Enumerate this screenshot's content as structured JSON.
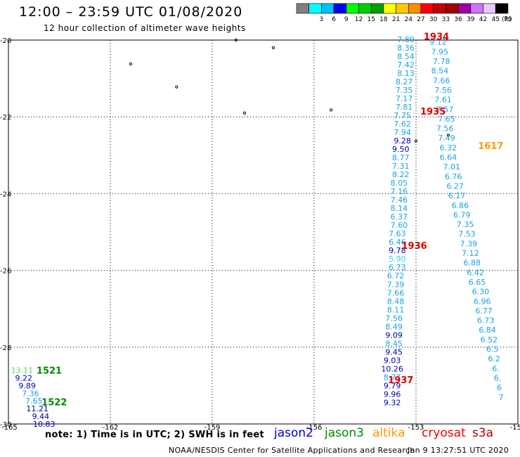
{
  "title": "12:00 – 23:59 UTC 01/08/2020",
  "subtitle": "12 hour collection of altimeter wave heights",
  "footer": {
    "note": "note: 1) Time is in UTC; 2) SWH is in feet",
    "credit": "NOAA/NESDIS Center for Satellite Applications and Research",
    "generated": "Jan  9 13:27:51 UTC 2020"
  },
  "legend": {
    "unit": "(ft)",
    "items": [
      {
        "label": "",
        "color": "#808080"
      },
      {
        "label": "3",
        "color": "#00ffff"
      },
      {
        "label": "6",
        "color": "#00bfff"
      },
      {
        "label": "9",
        "color": "#0000ff"
      },
      {
        "label": "12",
        "color": "#00ff00"
      },
      {
        "label": "15",
        "color": "#00d000"
      },
      {
        "label": "18",
        "color": "#00a000"
      },
      {
        "label": "21",
        "color": "#ffff00"
      },
      {
        "label": "24",
        "color": "#ffc800"
      },
      {
        "label": "27",
        "color": "#ff8c00"
      },
      {
        "label": "30",
        "color": "#ff0000"
      },
      {
        "label": "33",
        "color": "#c80000"
      },
      {
        "label": "36",
        "color": "#a00000"
      },
      {
        "label": "39",
        "color": "#a000a0"
      },
      {
        "label": "42",
        "color": "#d070ff"
      },
      {
        "label": "45",
        "color": "#e8c8ff"
      },
      {
        "label": "70",
        "color": "#000000"
      }
    ]
  },
  "satellites": [
    {
      "name": "jason2",
      "color": "#0000cc"
    },
    {
      "name": "jason3",
      "color": "#008800"
    },
    {
      "name": "altika",
      "color": "#ff9900"
    },
    {
      "name": "cryosat",
      "color": "#ee0000"
    },
    {
      "name": "s3a",
      "color": "#aa0000"
    }
  ],
  "chart_data": {
    "type": "scatter",
    "xlim": [
      -165,
      -150
    ],
    "ylim": [
      -30,
      -20
    ],
    "x_ticks": [
      -165,
      -162,
      -159,
      -156,
      -153,
      -150
    ],
    "x_tick_labels": [
      "-165",
      "-162",
      "-159",
      "-156",
      "-153",
      "-150"
    ],
    "y_ticks": [
      -20,
      -22,
      -24,
      -26,
      -28,
      -30
    ],
    "y_tick_labels": [
      "-20",
      "-22",
      "-24",
      "-26",
      "-28",
      "-30"
    ],
    "grid": true,
    "track_a": [
      {
        "lon": -153.3,
        "lat": -19.98,
        "value": "7.80",
        "color": "#1aa3e0"
      },
      {
        "lon": -153.3,
        "lat": -20.2,
        "value": "8.36",
        "color": "#1aa3e0"
      },
      {
        "lon": -153.3,
        "lat": -20.42,
        "value": "8.54",
        "color": "#1aa3e0"
      },
      {
        "lon": -153.3,
        "lat": -20.64,
        "value": "7.42",
        "color": "#1aa3e0"
      },
      {
        "lon": -153.3,
        "lat": -20.86,
        "value": "8.13",
        "color": "#1aa3e0"
      },
      {
        "lon": -153.35,
        "lat": -21.08,
        "value": "8.27",
        "color": "#1aa3e0"
      },
      {
        "lon": -153.35,
        "lat": -21.3,
        "value": "7.35",
        "color": "#1aa3e0"
      },
      {
        "lon": -153.35,
        "lat": -21.52,
        "value": "7.17",
        "color": "#1aa3e0"
      },
      {
        "lon": -153.35,
        "lat": -21.74,
        "value": "7.81",
        "color": "#1aa3e0"
      },
      {
        "lon": -153.4,
        "lat": -21.96,
        "value": "7.75",
        "color": "#1aa3e0"
      },
      {
        "lon": -153.4,
        "lat": -22.18,
        "value": "7.62",
        "color": "#1aa3e0"
      },
      {
        "lon": -153.4,
        "lat": -22.4,
        "value": "7.94",
        "color": "#1aa3e0"
      },
      {
        "lon": -153.4,
        "lat": -22.62,
        "value": "9.28",
        "color": "#0000aa"
      },
      {
        "lon": -153.45,
        "lat": -22.84,
        "value": "9.50",
        "color": "#0000aa"
      },
      {
        "lon": -153.45,
        "lat": -23.06,
        "value": "8.77",
        "color": "#1aa3e0"
      },
      {
        "lon": -153.45,
        "lat": -23.28,
        "value": "7.31",
        "color": "#1aa3e0"
      },
      {
        "lon": -153.45,
        "lat": -23.5,
        "value": "8.22",
        "color": "#1aa3e0"
      },
      {
        "lon": -153.5,
        "lat": -23.72,
        "value": "8.05",
        "color": "#1aa3e0"
      },
      {
        "lon": -153.5,
        "lat": -23.94,
        "value": "7.16",
        "color": "#1aa3e0"
      },
      {
        "lon": -153.5,
        "lat": -24.16,
        "value": "7.46",
        "color": "#1aa3e0"
      },
      {
        "lon": -153.5,
        "lat": -24.38,
        "value": "8.14",
        "color": "#1aa3e0"
      },
      {
        "lon": -153.5,
        "lat": -24.6,
        "value": "6.37",
        "color": "#1aa3e0"
      },
      {
        "lon": -153.5,
        "lat": -24.82,
        "value": "7.60",
        "color": "#1aa3e0"
      },
      {
        "lon": -153.55,
        "lat": -25.04,
        "value": "7.63",
        "color": "#1aa3e0"
      },
      {
        "lon": -153.55,
        "lat": -25.26,
        "value": "6.46",
        "color": "#1aa3e0"
      },
      {
        "lon": -153.55,
        "lat": -25.48,
        "value": "9.78",
        "color": "#0000aa"
      },
      {
        "lon": -153.55,
        "lat": -25.7,
        "value": "5.90",
        "color": "#33ccee"
      },
      {
        "lon": -153.55,
        "lat": -25.92,
        "value": "6.73",
        "color": "#1aa3e0"
      },
      {
        "lon": -153.6,
        "lat": -26.14,
        "value": "6.72",
        "color": "#1aa3e0"
      },
      {
        "lon": -153.6,
        "lat": -26.36,
        "value": "7.39",
        "color": "#1aa3e0"
      },
      {
        "lon": -153.6,
        "lat": -26.58,
        "value": "7.66",
        "color": "#1aa3e0"
      },
      {
        "lon": -153.6,
        "lat": -26.8,
        "value": "8.48",
        "color": "#1aa3e0"
      },
      {
        "lon": -153.6,
        "lat": -27.02,
        "value": "8.11",
        "color": "#1aa3e0"
      },
      {
        "lon": -153.65,
        "lat": -27.24,
        "value": "7.56",
        "color": "#1aa3e0"
      },
      {
        "lon": -153.65,
        "lat": -27.46,
        "value": "8.49",
        "color": "#1aa3e0"
      },
      {
        "lon": -153.65,
        "lat": -27.68,
        "value": "9.09",
        "color": "#0000aa"
      },
      {
        "lon": -153.65,
        "lat": -27.9,
        "value": "8.45",
        "color": "#1aa3e0"
      },
      {
        "lon": -153.65,
        "lat": -28.12,
        "value": "9.45",
        "color": "#0000aa"
      },
      {
        "lon": -153.7,
        "lat": -28.34,
        "value": "9.03",
        "color": "#0000aa"
      },
      {
        "lon": -153.7,
        "lat": -28.56,
        "value": "10.26",
        "color": "#0000aa"
      },
      {
        "lon": -153.7,
        "lat": -28.78,
        "value": "8.77",
        "color": "#1aa3e0"
      },
      {
        "lon": -153.7,
        "lat": -29.0,
        "value": "9.79",
        "color": "#0000aa"
      },
      {
        "lon": -153.7,
        "lat": -29.22,
        "value": "9.96",
        "color": "#0000aa"
      },
      {
        "lon": -153.7,
        "lat": -29.44,
        "value": "9.32",
        "color": "#0000aa"
      }
    ],
    "track_b": [
      {
        "lon": -152.35,
        "lat": -20.05,
        "value": "9.12",
        "color": "#1aa3e0"
      },
      {
        "lon": -152.3,
        "lat": -20.3,
        "value": "7.95",
        "color": "#1aa3e0"
      },
      {
        "lon": -152.25,
        "lat": -20.55,
        "value": "7.78",
        "color": "#1aa3e0"
      },
      {
        "lon": -152.3,
        "lat": -20.8,
        "value": "8.54",
        "color": "#1aa3e0"
      },
      {
        "lon": -152.25,
        "lat": -21.05,
        "value": "7.66",
        "color": "#1aa3e0"
      },
      {
        "lon": -152.2,
        "lat": -21.3,
        "value": "7.56",
        "color": "#1aa3e0"
      },
      {
        "lon": -152.2,
        "lat": -21.55,
        "value": "7.61",
        "color": "#1aa3e0"
      },
      {
        "lon": -152.15,
        "lat": -21.8,
        "value": "7.57",
        "color": "#1aa3e0"
      },
      {
        "lon": -152.1,
        "lat": -22.05,
        "value": "7.65",
        "color": "#1aa3e0"
      },
      {
        "lon": -152.15,
        "lat": -22.3,
        "value": "7.56",
        "color": "#1aa3e0"
      },
      {
        "lon": -152.1,
        "lat": -22.55,
        "value": "7.49",
        "color": "#1aa3e0"
      },
      {
        "lon": -152.05,
        "lat": -22.8,
        "value": "6.32",
        "color": "#1aa3e0"
      },
      {
        "lon": -152.05,
        "lat": -23.05,
        "value": "6.64",
        "color": "#1aa3e0"
      },
      {
        "lon": -151.95,
        "lat": -23.3,
        "value": "7.01",
        "color": "#1aa3e0"
      },
      {
        "lon": -151.9,
        "lat": -23.55,
        "value": "6.76",
        "color": "#1aa3e0"
      },
      {
        "lon": -151.85,
        "lat": -23.8,
        "value": "6.27",
        "color": "#1aa3e0"
      },
      {
        "lon": -151.8,
        "lat": -24.05,
        "value": "6.17",
        "color": "#1aa3e0"
      },
      {
        "lon": -151.7,
        "lat": -24.3,
        "value": "6.86",
        "color": "#1aa3e0"
      },
      {
        "lon": -151.65,
        "lat": -24.55,
        "value": "6.79",
        "color": "#1aa3e0"
      },
      {
        "lon": -151.55,
        "lat": -24.8,
        "value": "7.35",
        "color": "#1aa3e0"
      },
      {
        "lon": -151.5,
        "lat": -25.05,
        "value": "7.53",
        "color": "#1aa3e0"
      },
      {
        "lon": -151.45,
        "lat": -25.3,
        "value": "7.39",
        "color": "#1aa3e0"
      },
      {
        "lon": -151.4,
        "lat": -25.55,
        "value": "7.12",
        "color": "#1aa3e0"
      },
      {
        "lon": -151.35,
        "lat": -25.8,
        "value": "6.88",
        "color": "#1aa3e0"
      },
      {
        "lon": -151.25,
        "lat": -26.05,
        "value": "6.42",
        "color": "#1aa3e0"
      },
      {
        "lon": -151.2,
        "lat": -26.3,
        "value": "6.65",
        "color": "#1aa3e0"
      },
      {
        "lon": -151.1,
        "lat": -26.55,
        "value": "6.30",
        "color": "#1aa3e0"
      },
      {
        "lon": -151.05,
        "lat": -26.8,
        "value": "6.96",
        "color": "#1aa3e0"
      },
      {
        "lon": -151.0,
        "lat": -27.05,
        "value": "6.77",
        "color": "#1aa3e0"
      },
      {
        "lon": -150.95,
        "lat": -27.3,
        "value": "6.73",
        "color": "#1aa3e0"
      },
      {
        "lon": -150.9,
        "lat": -27.55,
        "value": "6.84",
        "color": "#1aa3e0"
      },
      {
        "lon": -150.85,
        "lat": -27.8,
        "value": "6.52",
        "color": "#1aa3e0"
      },
      {
        "lon": -150.75,
        "lat": -28.05,
        "value": "6.5",
        "color": "#1aa3e0"
      },
      {
        "lon": -150.7,
        "lat": -28.3,
        "value": "6.2",
        "color": "#1aa3e0"
      },
      {
        "lon": -150.65,
        "lat": -28.55,
        "value": "6.",
        "color": "#1aa3e0"
      },
      {
        "lon": -150.6,
        "lat": -28.8,
        "value": "6.",
        "color": "#1aa3e0"
      },
      {
        "lon": -150.55,
        "lat": -29.05,
        "value": "6",
        "color": "#1aa3e0"
      },
      {
        "lon": -150.5,
        "lat": -29.3,
        "value": "7",
        "color": "#1aa3e0"
      }
    ],
    "track_c": [
      {
        "lon": -164.6,
        "lat": -28.6,
        "value": "13.11",
        "color": "#55dd55"
      },
      {
        "lon": -164.55,
        "lat": -28.8,
        "value": "9.22",
        "color": "#0000aa"
      },
      {
        "lon": -164.45,
        "lat": -29.0,
        "value": "9.89",
        "color": "#0000aa"
      },
      {
        "lon": -164.35,
        "lat": -29.2,
        "value": "7.36",
        "color": "#1aa3e0"
      },
      {
        "lon": -164.25,
        "lat": -29.4,
        "value": "7.65",
        "color": "#1aa3e0"
      },
      {
        "lon": -164.15,
        "lat": -29.6,
        "value": "11.21",
        "color": "#0000aa"
      },
      {
        "lon": -164.05,
        "lat": -29.8,
        "value": "9.44",
        "color": "#0000aa"
      },
      {
        "lon": -163.95,
        "lat": -30.0,
        "value": "10.83",
        "color": "#0000aa"
      }
    ],
    "time_labels": [
      {
        "lon": -152.4,
        "lat": -19.9,
        "text": "1934",
        "color": "#dd0000"
      },
      {
        "lon": -152.5,
        "lat": -21.85,
        "text": "1935",
        "color": "#dd0000"
      },
      {
        "lon": -153.05,
        "lat": -25.35,
        "text": "1936",
        "color": "#dd0000"
      },
      {
        "lon": -153.45,
        "lat": -28.85,
        "text": "1937",
        "color": "#dd0000"
      },
      {
        "lon": -150.8,
        "lat": -22.75,
        "text": "1617",
        "color": "#ff9900"
      },
      {
        "lon": -163.8,
        "lat": -28.6,
        "text": "1521",
        "color": "#008800"
      },
      {
        "lon": -163.65,
        "lat": -29.42,
        "text": "1522",
        "color": "#008800"
      }
    ],
    "islands": [
      {
        "lon": -161.4,
        "lat": -20.62
      },
      {
        "lon": -160.05,
        "lat": -21.22
      },
      {
        "lon": -158.05,
        "lat": -21.9
      },
      {
        "lon": -158.3,
        "lat": -20.0
      },
      {
        "lon": -157.2,
        "lat": -20.2
      },
      {
        "lon": -155.5,
        "lat": -21.82
      },
      {
        "lon": -153.0,
        "lat": -22.63
      },
      {
        "lon": -152.05,
        "lat": -22.48
      }
    ]
  }
}
